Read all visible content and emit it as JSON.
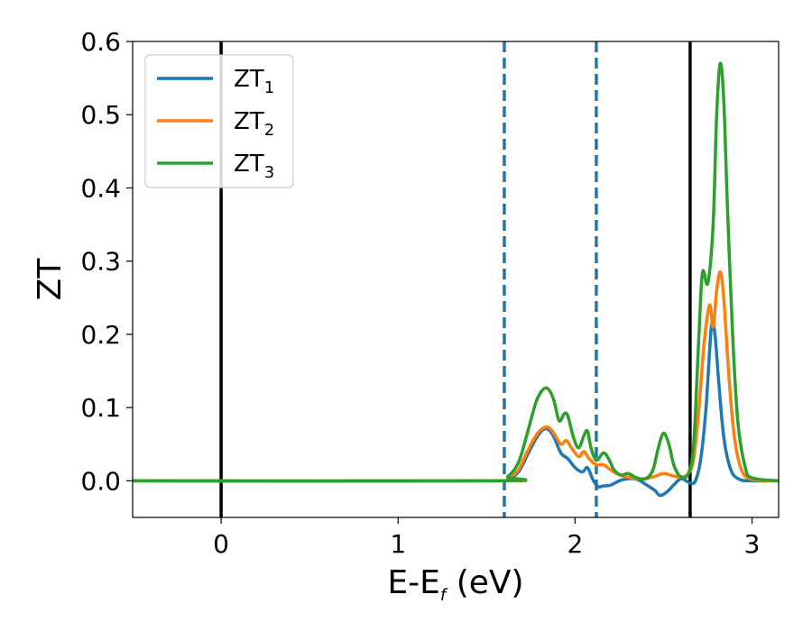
{
  "chart_data": {
    "type": "line",
    "xlabel": "E-E",
    "xlabel_sub": "f",
    "xlabel_unit": " (eV)",
    "ylabel": "ZT",
    "xlim": [
      -0.5,
      3.15
    ],
    "ylim": [
      -0.05,
      0.6
    ],
    "xticks": [
      0,
      1,
      2,
      3
    ],
    "yticks": [
      0.0,
      0.1,
      0.2,
      0.3,
      0.4,
      0.5,
      0.6
    ],
    "ytick_labels": [
      "0.0",
      "0.1",
      "0.2",
      "0.3",
      "0.4",
      "0.5",
      "0.6"
    ],
    "grid": false,
    "legend_position": "top-left",
    "vlines_solid": [
      0.0,
      2.65
    ],
    "vlines_dashed": [
      1.6,
      2.12
    ],
    "series": [
      {
        "name": "ZT",
        "sub": "1",
        "color": "#1f77b4",
        "points": [
          [
            -0.5,
            0
          ],
          [
            1.55,
            0
          ],
          [
            1.62,
            0.003
          ],
          [
            1.68,
            0.012
          ],
          [
            1.73,
            0.035
          ],
          [
            1.78,
            0.058
          ],
          [
            1.82,
            0.07
          ],
          [
            1.85,
            0.07
          ],
          [
            1.88,
            0.06
          ],
          [
            1.92,
            0.038
          ],
          [
            1.96,
            0.03
          ],
          [
            2.0,
            0.018
          ],
          [
            2.04,
            0.012
          ],
          [
            2.07,
            0.018
          ],
          [
            2.1,
            0.002
          ],
          [
            2.13,
            -0.008
          ],
          [
            2.16,
            -0.007
          ],
          [
            2.2,
            -0.006
          ],
          [
            2.25,
            0.0
          ],
          [
            2.3,
            0.003
          ],
          [
            2.35,
            0.002
          ],
          [
            2.4,
            -0.005
          ],
          [
            2.45,
            -0.013
          ],
          [
            2.48,
            -0.02
          ],
          [
            2.52,
            -0.015
          ],
          [
            2.56,
            -0.005
          ],
          [
            2.6,
            0.003
          ],
          [
            2.65,
            -0.003
          ],
          [
            2.68,
            0.0
          ],
          [
            2.71,
            0.03
          ],
          [
            2.74,
            0.1
          ],
          [
            2.77,
            0.21
          ],
          [
            2.79,
            0.2
          ],
          [
            2.81,
            0.14
          ],
          [
            2.84,
            0.06
          ],
          [
            2.88,
            0.015
          ],
          [
            2.93,
            0.002
          ],
          [
            3.0,
            0
          ],
          [
            3.15,
            0
          ]
        ]
      },
      {
        "name": "ZT",
        "sub": "2",
        "color": "#ff7f0e",
        "points": [
          [
            -0.5,
            0
          ],
          [
            1.55,
            0
          ],
          [
            1.62,
            0.004
          ],
          [
            1.68,
            0.015
          ],
          [
            1.73,
            0.04
          ],
          [
            1.78,
            0.062
          ],
          [
            1.82,
            0.072
          ],
          [
            1.85,
            0.073
          ],
          [
            1.88,
            0.065
          ],
          [
            1.92,
            0.05
          ],
          [
            1.95,
            0.055
          ],
          [
            1.98,
            0.045
          ],
          [
            2.02,
            0.033
          ],
          [
            2.05,
            0.04
          ],
          [
            2.08,
            0.03
          ],
          [
            2.12,
            0.022
          ],
          [
            2.16,
            0.022
          ],
          [
            2.2,
            0.015
          ],
          [
            2.25,
            0.008
          ],
          [
            2.3,
            0.005
          ],
          [
            2.35,
            0.003
          ],
          [
            2.4,
            0.003
          ],
          [
            2.45,
            0.006
          ],
          [
            2.5,
            0.01
          ],
          [
            2.55,
            0.007
          ],
          [
            2.6,
            0.005
          ],
          [
            2.64,
            0.01
          ],
          [
            2.67,
            0.03
          ],
          [
            2.7,
            0.1
          ],
          [
            2.73,
            0.19
          ],
          [
            2.76,
            0.24
          ],
          [
            2.78,
            0.21
          ],
          [
            2.8,
            0.26
          ],
          [
            2.82,
            0.285
          ],
          [
            2.84,
            0.25
          ],
          [
            2.87,
            0.14
          ],
          [
            2.9,
            0.06
          ],
          [
            2.94,
            0.015
          ],
          [
            3.0,
            0.002
          ],
          [
            3.15,
            0
          ]
        ]
      },
      {
        "name": "ZT",
        "sub": "3",
        "color": "#2ca02c",
        "points": [
          [
            -0.5,
            0
          ],
          [
            1.55,
            0
          ],
          [
            1.62,
            0.006
          ],
          [
            1.68,
            0.025
          ],
          [
            1.73,
            0.065
          ],
          [
            1.78,
            0.108
          ],
          [
            1.82,
            0.125
          ],
          [
            1.85,
            0.125
          ],
          [
            1.88,
            0.11
          ],
          [
            1.91,
            0.082
          ],
          [
            1.94,
            0.092
          ],
          [
            1.96,
            0.088
          ],
          [
            1.99,
            0.06
          ],
          [
            2.02,
            0.045
          ],
          [
            2.05,
            0.062
          ],
          [
            2.07,
            0.068
          ],
          [
            2.09,
            0.045
          ],
          [
            2.12,
            0.028
          ],
          [
            2.16,
            0.038
          ],
          [
            2.19,
            0.03
          ],
          [
            2.22,
            0.015
          ],
          [
            2.26,
            0.008
          ],
          [
            2.3,
            0.01
          ],
          [
            2.35,
            0.004
          ],
          [
            2.4,
            0.003
          ],
          [
            2.44,
            0.015
          ],
          [
            2.47,
            0.045
          ],
          [
            2.5,
            0.065
          ],
          [
            2.53,
            0.05
          ],
          [
            2.56,
            0.02
          ],
          [
            2.6,
            0.005
          ],
          [
            2.64,
            0.01
          ],
          [
            2.67,
            0.05
          ],
          [
            2.7,
            0.2
          ],
          [
            2.72,
            0.285
          ],
          [
            2.75,
            0.27
          ],
          [
            2.78,
            0.35
          ],
          [
            2.8,
            0.5
          ],
          [
            2.82,
            0.57
          ],
          [
            2.84,
            0.52
          ],
          [
            2.86,
            0.38
          ],
          [
            2.89,
            0.2
          ],
          [
            2.92,
            0.08
          ],
          [
            2.96,
            0.02
          ],
          [
            3.0,
            0.004
          ],
          [
            3.15,
            0
          ]
        ]
      }
    ]
  }
}
